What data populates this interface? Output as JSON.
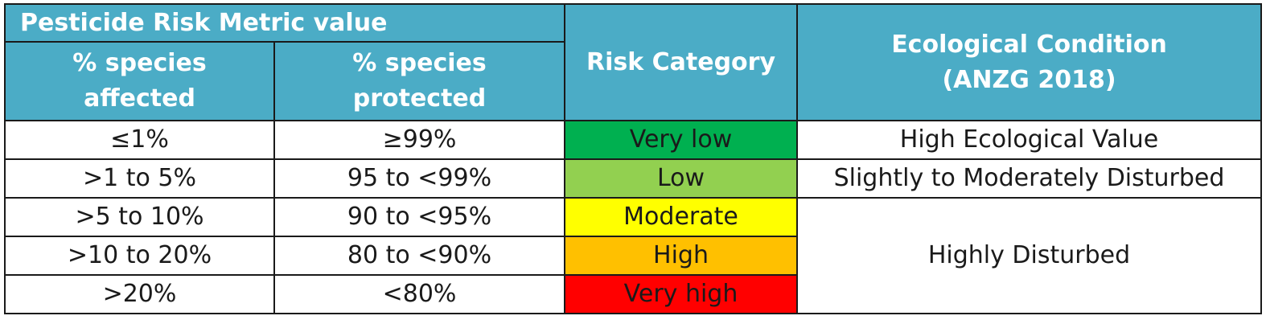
{
  "header": {
    "group_title": "Pesticide Risk Metric value",
    "col_affected": "% species affected",
    "col_protected": "% species protected",
    "col_risk": "Risk Category",
    "col_ecological": "Ecological Condition (ANZG 2018)"
  },
  "rows": [
    {
      "affected": "≤1%",
      "protected": "≥99%",
      "risk": "Very low",
      "risk_color": "#00b050"
    },
    {
      "affected": ">1 to 5%",
      "protected": "95 to <99%",
      "risk": "Low",
      "risk_color": "#92d050"
    },
    {
      "affected": ">5 to 10%",
      "protected": "90 to <95%",
      "risk": "Moderate",
      "risk_color": "#ffff00"
    },
    {
      "affected": ">10 to 20%",
      "protected": "80 to <90%",
      "risk": "High",
      "risk_color": "#ffc000"
    },
    {
      "affected": ">20%",
      "protected": "<80%",
      "risk": "Very high",
      "risk_color": "#ff0000"
    }
  ],
  "ecological": {
    "very_low": "High Ecological Value",
    "low": "Slightly to Moderately Disturbed",
    "moderate_to_very_high": "Highly Disturbed"
  },
  "colors": {
    "header_bg": "#4bacc6",
    "header_text": "#ffffff",
    "border": "#1a1a1a"
  }
}
